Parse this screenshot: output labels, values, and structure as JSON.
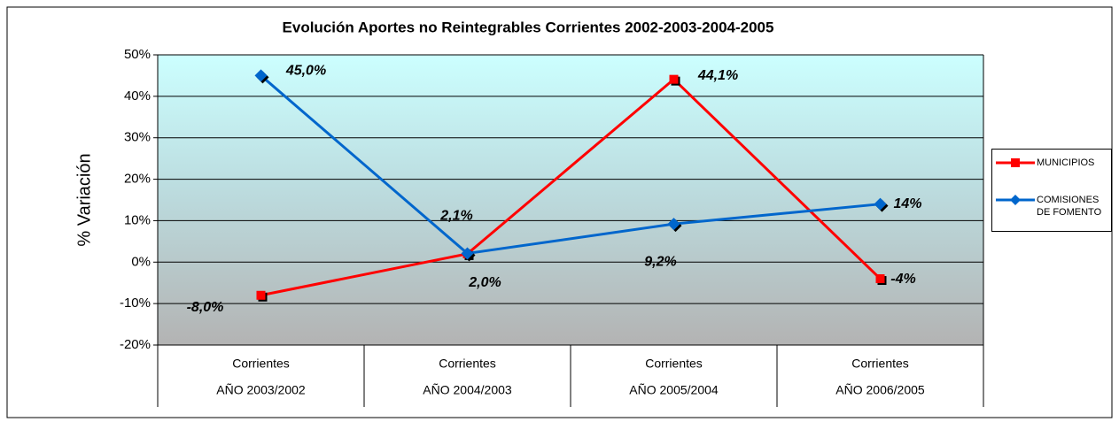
{
  "chart_data": {
    "type": "line",
    "title": "Evolución Aportes no Reintegrables Corrientes 2002-2003-2004-2005",
    "ylabel": "% Variación",
    "categories": [
      [
        "Corrientes",
        "AÑO 2003/2002"
      ],
      [
        "Corrientes",
        "AÑO 2004/2003"
      ],
      [
        "Corrientes",
        "AÑO 2005/2004"
      ],
      [
        "Corrientes",
        "AÑO 2006/2005"
      ]
    ],
    "series": [
      {
        "name": "MUNICIPIOS",
        "color": "#ff0000",
        "marker": "square",
        "values": [
          -8.0,
          2.0,
          44.1,
          -4
        ],
        "value_labels": [
          "-8,0%",
          "2,0%",
          "44,1%",
          "-4%"
        ]
      },
      {
        "name": "COMISIONES DE FOMENTO",
        "color": "#0066cc",
        "marker": "diamond",
        "values": [
          45.0,
          2.1,
          9.2,
          14
        ],
        "value_labels": [
          "45,0%",
          "2,1%",
          "9,2%",
          "14%"
        ]
      }
    ],
    "ylim": [
      -20,
      50
    ],
    "yticks": [
      {
        "value": -20,
        "label": "-20%"
      },
      {
        "value": -10,
        "label": "-10%"
      },
      {
        "value": 0,
        "label": "0%"
      },
      {
        "value": 10,
        "label": "10%"
      },
      {
        "value": 20,
        "label": "20%"
      },
      {
        "value": 30,
        "label": "30%"
      },
      {
        "value": 40,
        "label": "40%"
      },
      {
        "value": 50,
        "label": "50%"
      }
    ],
    "grid": true,
    "legend": "right"
  }
}
